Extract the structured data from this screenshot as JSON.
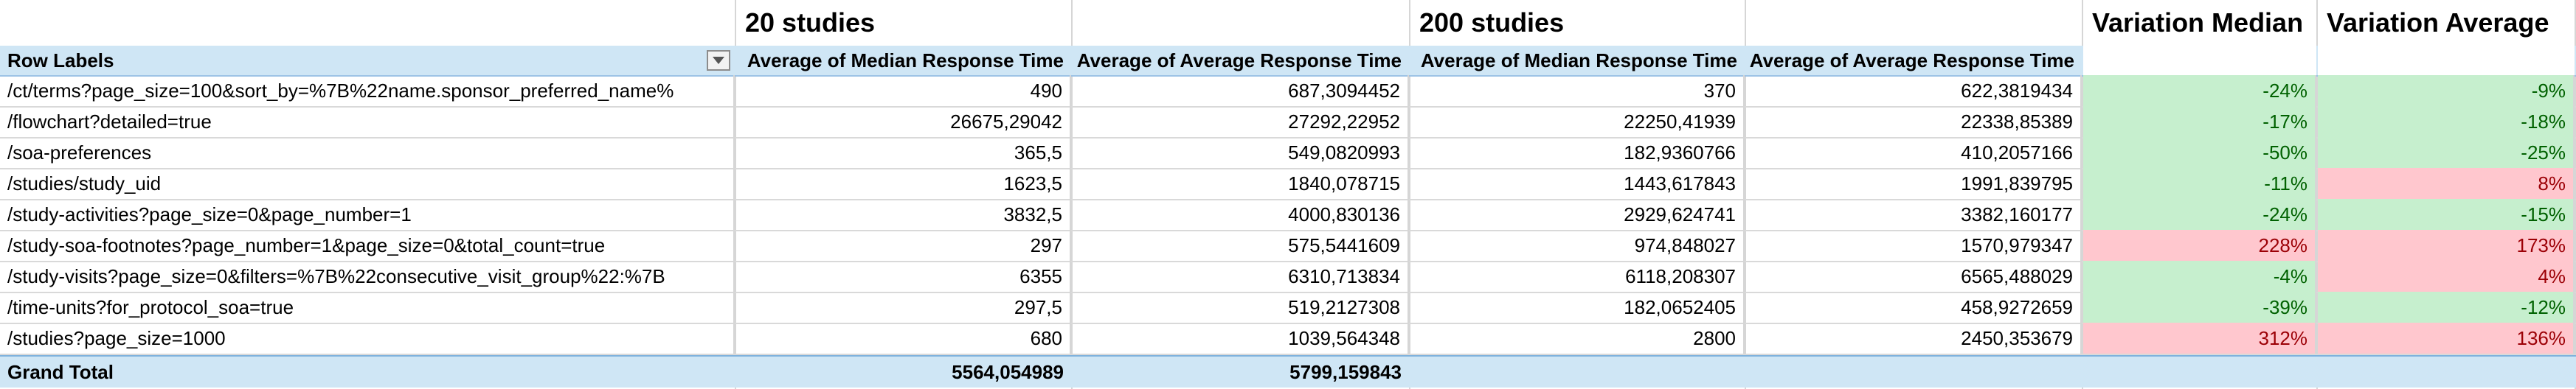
{
  "group_titles": {
    "studies20": "20 studies",
    "studies200": "200 studies",
    "variation_median": "Variation Median",
    "variation_average": "Variation Average"
  },
  "headers": {
    "row_labels": "Row Labels",
    "s20_median": "Average of Median Response Time",
    "s20_average": "Average of Average Response Time",
    "s200_median": "Average of Median Response Time",
    "s200_average": "Average of Average Response Time"
  },
  "rows": [
    {
      "label": "/ct/terms?page_size=100&sort_by=%7B%22name.sponsor_preferred_name%",
      "s20_median": "490",
      "s20_average": "687,3094452",
      "s200_median": "370",
      "s200_average": "622,3819434",
      "var_median": "-24%",
      "var_average": "-9%",
      "var_median_status": "good",
      "var_average_status": "good"
    },
    {
      "label": "/flowchart?detailed=true",
      "s20_median": "26675,29042",
      "s20_average": "27292,22952",
      "s200_median": "22250,41939",
      "s200_average": "22338,85389",
      "var_median": "-17%",
      "var_average": "-18%",
      "var_median_status": "good",
      "var_average_status": "good"
    },
    {
      "label": "/soa-preferences",
      "s20_median": "365,5",
      "s20_average": "549,0820993",
      "s200_median": "182,9360766",
      "s200_average": "410,2057166",
      "var_median": "-50%",
      "var_average": "-25%",
      "var_median_status": "good",
      "var_average_status": "good"
    },
    {
      "label": "/studies/study_uid",
      "s20_median": "1623,5",
      "s20_average": "1840,078715",
      "s200_median": "1443,617843",
      "s200_average": "1991,839795",
      "var_median": "-11%",
      "var_average": "8%",
      "var_median_status": "good",
      "var_average_status": "bad"
    },
    {
      "label": "/study-activities?page_size=0&page_number=1",
      "s20_median": "3832,5",
      "s20_average": "4000,830136",
      "s200_median": "2929,624741",
      "s200_average": "3382,160177",
      "var_median": "-24%",
      "var_average": "-15%",
      "var_median_status": "good",
      "var_average_status": "good"
    },
    {
      "label": "/study-soa-footnotes?page_number=1&page_size=0&total_count=true",
      "s20_median": "297",
      "s20_average": "575,5441609",
      "s200_median": "974,848027",
      "s200_average": "1570,979347",
      "var_median": "228%",
      "var_average": "173%",
      "var_median_status": "bad",
      "var_average_status": "bad"
    },
    {
      "label": "/study-visits?page_size=0&filters=%7B%22consecutive_visit_group%22:%7B",
      "s20_median": "6355",
      "s20_average": "6310,713834",
      "s200_median": "6118,208307",
      "s200_average": "6565,488029",
      "var_median": "-4%",
      "var_average": "4%",
      "var_median_status": "good",
      "var_average_status": "bad"
    },
    {
      "label": "/time-units?for_protocol_soa=true",
      "s20_median": "297,5",
      "s20_average": "519,2127308",
      "s200_median": "182,0652405",
      "s200_average": "458,9272659",
      "var_median": "-39%",
      "var_average": "-12%",
      "var_median_status": "good",
      "var_average_status": "good"
    },
    {
      "label": "/studies?page_size=1000",
      "s20_median": "680",
      "s20_average": "1039,564348",
      "s200_median": "2800",
      "s200_average": "2450,353679",
      "var_median": "312%",
      "var_average": "136%",
      "var_median_status": "bad",
      "var_average_status": "bad"
    }
  ],
  "grand_total": {
    "label": "Grand Total",
    "s20_median": "5564,054989",
    "s20_average": "5799,159843"
  },
  "icons": {
    "filter": "dropdown-filter-icon"
  },
  "colors": {
    "header_bg": "#cfe6f5",
    "good_bg": "#c6efce",
    "good_text": "#006100",
    "bad_bg": "#ffc7ce",
    "bad_text": "#9c0006"
  }
}
